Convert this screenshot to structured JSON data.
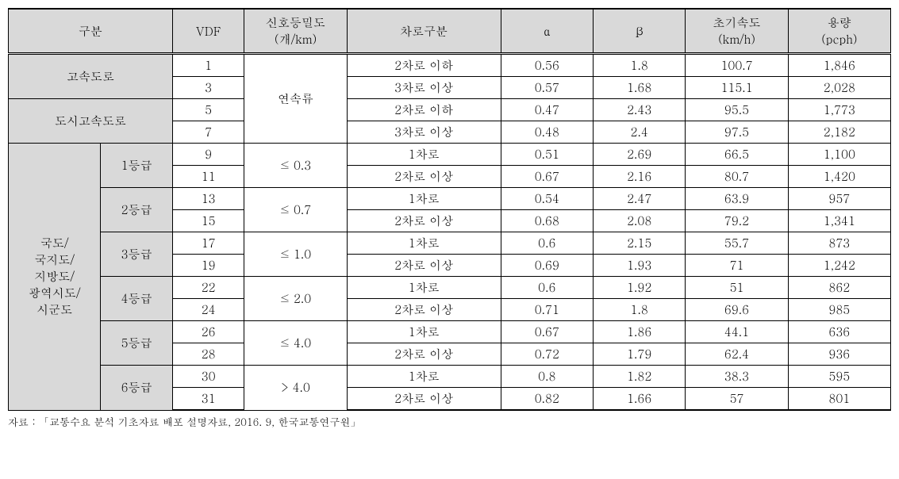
{
  "headers": {
    "category": "구분",
    "vdf": "VDF",
    "signal_density": "신호등밀도\n(개/km)",
    "lane_type": "차로구분",
    "alpha": "α",
    "beta": "β",
    "init_speed": "초기속도\n(km/h)",
    "capacity": "용량\n(pcph)"
  },
  "groups": {
    "expressway": "고속도로",
    "urban_expressway": "도시고속도로",
    "national_road": "국도/\n국지도/\n지방도/\n광역시도/\n시군도",
    "grade1": "1등급",
    "grade2": "2등급",
    "grade3": "3등급",
    "grade4": "4등급",
    "grade5": "5등급",
    "grade6": "6등급",
    "continuous": "연속류"
  },
  "densities": {
    "d1": "≤ 0.3",
    "d2": "≤ 0.7",
    "d3": "≤ 1.0",
    "d4": "≤ 2.0",
    "d5": "≤ 4.0",
    "d6": "> 4.0"
  },
  "lanes": {
    "le2": "2차로 이하",
    "ge3": "3차로 이상",
    "lane1": "1차로",
    "ge2": "2차로 이상"
  },
  "rows": {
    "r1": {
      "vdf": "1",
      "alpha": "0.56",
      "beta": "1.8",
      "speed": "100.7",
      "cap": "1,846"
    },
    "r2": {
      "vdf": "3",
      "alpha": "0.57",
      "beta": "1.68",
      "speed": "115.1",
      "cap": "2,028"
    },
    "r3": {
      "vdf": "5",
      "alpha": "0.47",
      "beta": "2.43",
      "speed": "95.5",
      "cap": "1,773"
    },
    "r4": {
      "vdf": "7",
      "alpha": "0.48",
      "beta": "2.4",
      "speed": "97.5",
      "cap": "2,182"
    },
    "r5": {
      "vdf": "9",
      "alpha": "0.51",
      "beta": "2.69",
      "speed": "66.5",
      "cap": "1,100"
    },
    "r6": {
      "vdf": "11",
      "alpha": "0.67",
      "beta": "2.16",
      "speed": "80.7",
      "cap": "1,420"
    },
    "r7": {
      "vdf": "13",
      "alpha": "0.54",
      "beta": "2.47",
      "speed": "63.9",
      "cap": "957"
    },
    "r8": {
      "vdf": "15",
      "alpha": "0.68",
      "beta": "2.08",
      "speed": "79.2",
      "cap": "1,341"
    },
    "r9": {
      "vdf": "17",
      "alpha": "0.6",
      "beta": "2.15",
      "speed": "55.7",
      "cap": "873"
    },
    "r10": {
      "vdf": "19",
      "alpha": "0.69",
      "beta": "1.93",
      "speed": "71",
      "cap": "1,242"
    },
    "r11": {
      "vdf": "22",
      "alpha": "0.6",
      "beta": "1.92",
      "speed": "51",
      "cap": "862"
    },
    "r12": {
      "vdf": "24",
      "alpha": "0.71",
      "beta": "1.8",
      "speed": "69.6",
      "cap": "985"
    },
    "r13": {
      "vdf": "26",
      "alpha": "0.67",
      "beta": "1.86",
      "speed": "44.1",
      "cap": "636"
    },
    "r14": {
      "vdf": "28",
      "alpha": "0.72",
      "beta": "1.79",
      "speed": "62.4",
      "cap": "936"
    },
    "r15": {
      "vdf": "30",
      "alpha": "0.8",
      "beta": "1.82",
      "speed": "38.3",
      "cap": "595"
    },
    "r16": {
      "vdf": "31",
      "alpha": "0.82",
      "beta": "1.66",
      "speed": "57",
      "cap": "801"
    }
  },
  "source": "자료 : 「교통수요 분석 기초자료 배포 설명자료, 2016. 9, 한국교통연구원」"
}
